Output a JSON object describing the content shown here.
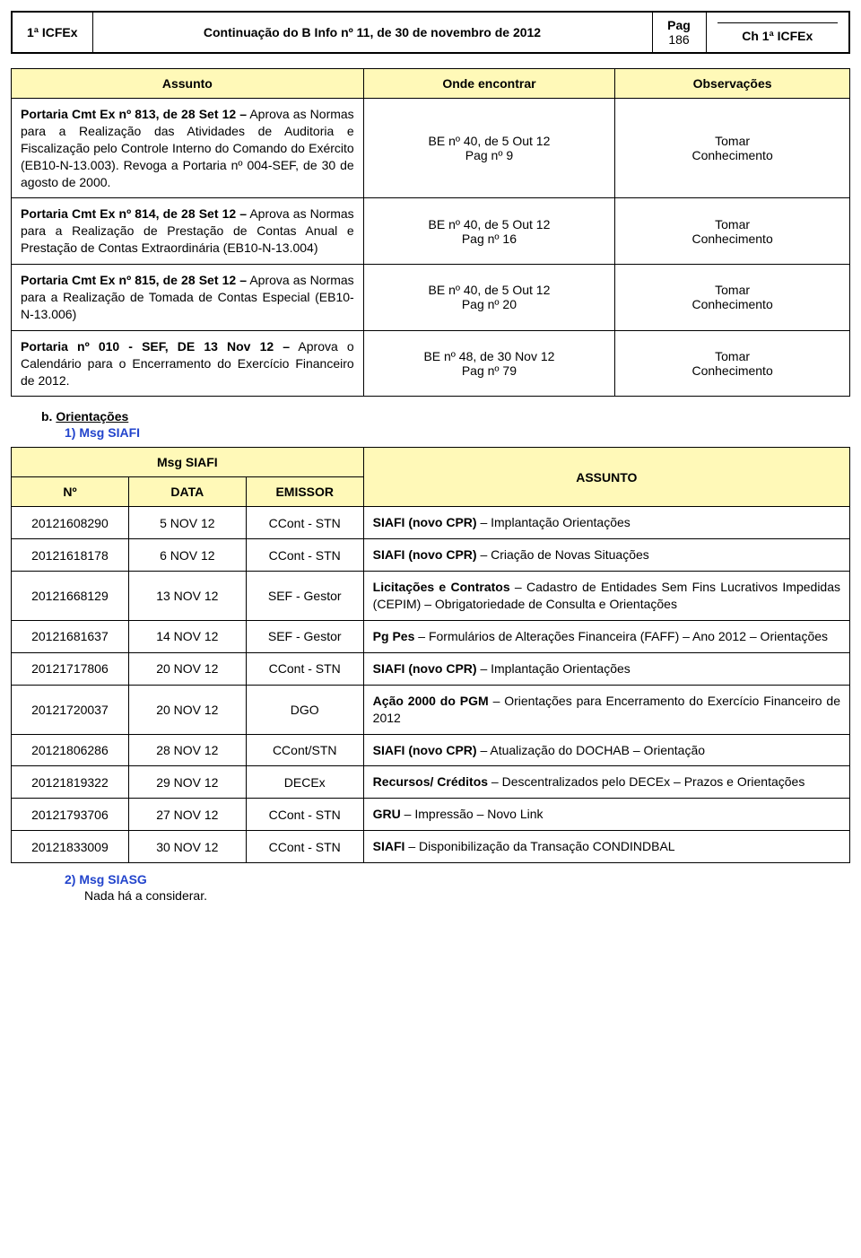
{
  "colors": {
    "header_bg": "#fff9b8",
    "link_blue": "#2244cc",
    "border": "#000000",
    "page_bg": "#ffffff",
    "text": "#000000"
  },
  "header": {
    "left": "1ª ICFEx",
    "title": "Continuação do B Info nº 11, de 30 de novembro de 2012",
    "pag_label": "Pag",
    "pag_num": "186",
    "ch": "Ch 1ª ICFEx"
  },
  "assunto_table": {
    "headers": [
      "Assunto",
      "Onde encontrar",
      "Observações"
    ],
    "rows": [
      {
        "assunto_bold": "Portaria Cmt Ex nº 813, de 28 Set 12 –",
        "assunto_rest": " Aprova as Normas para a Realização das Atividades de Auditoria e Fiscalização pelo Controle Interno do Comando do Exército (EB10-N-13.003). Revoga a Portaria nº 004-SEF, de 30 de agosto de 2000.",
        "onde_l1": "BE nº 40, de 5 Out 12",
        "onde_l2": "Pag nº 9",
        "obs_l1": "Tomar",
        "obs_l2": "Conhecimento"
      },
      {
        "assunto_bold": "Portaria Cmt Ex nº 814, de 28 Set 12 –",
        "assunto_rest": " Aprova as Normas para a Realização de Prestação de Contas Anual e Prestação de Contas Extraordinária (EB10-N-13.004)",
        "onde_l1": "BE nº 40, de 5 Out 12",
        "onde_l2": "Pag nº 16",
        "obs_l1": "Tomar",
        "obs_l2": "Conhecimento"
      },
      {
        "assunto_bold": "Portaria Cmt Ex nº 815, de 28 Set 12 –",
        "assunto_rest": " Aprova as Normas para a Realização de Tomada de Contas Especial (EB10-N-13.006)",
        "onde_l1": "BE nº 40, de 5 Out 12",
        "onde_l2": "Pag nº 20",
        "obs_l1": "Tomar",
        "obs_l2": "Conhecimento"
      },
      {
        "assunto_bold": "Portaria nº 010 - SEF, DE 13 Nov 12 –",
        "assunto_rest": " Aprova o Calendário para o Encerramento do Exercício Financeiro de 2012.",
        "onde_l1": "BE nº 48, de 30 Nov 12",
        "onde_l2": "Pag nº 79",
        "obs_l1": "Tomar",
        "obs_l2": "Conhecimento"
      }
    ]
  },
  "sections": {
    "b_label_prefix": "b. ",
    "b_label": "Orientações",
    "sub1": "1) Msg SIAFI",
    "sub2": "2) Msg SIASG",
    "nada": "Nada há a considerar."
  },
  "msg_table": {
    "head_msg": "Msg SIAFI",
    "head_assunto": "ASSUNTO",
    "sub_headers": [
      "Nº",
      "DATA",
      "EMISSOR"
    ],
    "rows": [
      {
        "no": "20121608290",
        "data": "5 NOV 12",
        "emissor": "CCont - STN",
        "assunto_bold": "SIAFI (novo CPR)",
        "assunto_rest": " – Implantação Orientações"
      },
      {
        "no": "20121618178",
        "data": "6 NOV 12",
        "emissor": "CCont - STN",
        "assunto_bold": "SIAFI (novo CPR)",
        "assunto_rest": " – Criação de Novas Situações"
      },
      {
        "no": "20121668129",
        "data": "13 NOV 12",
        "emissor": "SEF - Gestor",
        "assunto_bold": "Licitações e Contratos",
        "assunto_rest": " – Cadastro de Entidades Sem Fins Lucrativos Impedidas (CEPIM) – Obrigatoriedade de Consulta e Orientações"
      },
      {
        "no": "20121681637",
        "data": "14 NOV 12",
        "emissor": "SEF  - Gestor",
        "assunto_bold": "Pg Pes",
        "assunto_rest": " – Formulários de Alterações Financeira (FAFF) – Ano 2012 – Orientações"
      },
      {
        "no": "20121717806",
        "data": "20 NOV 12",
        "emissor": "CCont - STN",
        "assunto_bold": "SIAFI (novo CPR)",
        "assunto_rest": " – Implantação Orientações"
      },
      {
        "no": "20121720037",
        "data": "20 NOV 12",
        "emissor": "DGO",
        "assunto_bold": "Ação 2000 do PGM",
        "assunto_rest": " – Orientações para Encerramento do Exercício Financeiro de 2012"
      },
      {
        "no": "20121806286",
        "data": "28 NOV 12",
        "emissor": "CCont/STN",
        "assunto_bold": "SIAFI (novo CPR)",
        "assunto_rest": " – Atualização do DOCHAB – Orientação"
      },
      {
        "no": "20121819322",
        "data": "29 NOV 12",
        "emissor": "DECEx",
        "assunto_bold": "Recursos/ Créditos",
        "assunto_rest": " – Descentralizados pelo DECEx – Prazos e Orientações"
      },
      {
        "no": "20121793706",
        "data": "27 NOV 12",
        "emissor": "CCont - STN",
        "assunto_bold": "GRU",
        "assunto_rest": " – Impressão – Novo Link"
      },
      {
        "no": "20121833009",
        "data": "30 NOV 12",
        "emissor": "CCont - STN",
        "assunto_bold": "SIAFI",
        "assunto_rest": " – Disponibilização da Transação CONDINDBAL"
      }
    ]
  }
}
